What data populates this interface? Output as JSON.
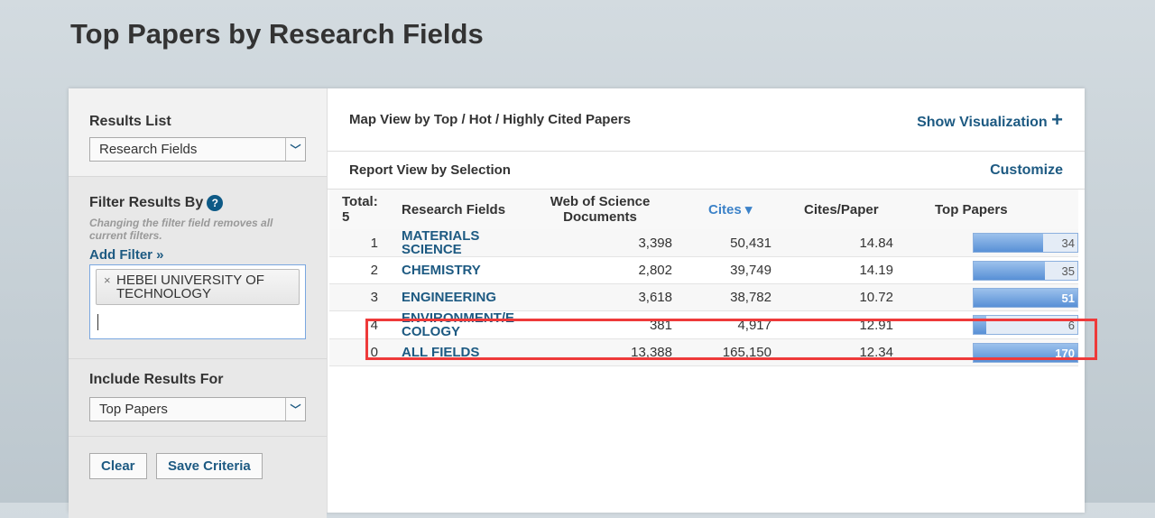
{
  "title": "Top Papers by Research Fields",
  "sidebar": {
    "results_list_label": "Results List",
    "results_list_value": "Research Fields",
    "filter_label": "Filter Results By",
    "help": "?",
    "filter_note": "Changing the filter field removes all current filters.",
    "add_filter": "Add Filter »",
    "filter_tag": "HEBEI UNIVERSITY OF TECHNOLOGY",
    "tag_remove": "×",
    "include_label": "Include Results For",
    "include_value": "Top Papers",
    "clear": "Clear",
    "save": "Save Criteria"
  },
  "main": {
    "map_view": "Map View by Top / Hot / Highly Cited Papers",
    "show_vis": "Show Visualization",
    "plus": "+",
    "report_view": "Report View by Selection",
    "customize": "Customize",
    "headers": {
      "total": "Total: 5",
      "field": "Research Fields",
      "docs": "Web of Science Documents",
      "cites": "Cites",
      "cites_arrow": "▾",
      "cpp": "Cites/Paper",
      "top": "Top Papers"
    },
    "rows": [
      {
        "rank": "1",
        "field": "MATERIALS SCIENCE",
        "docs": "3,398",
        "cites": "50,431",
        "cpp": "14.84",
        "top": 34
      },
      {
        "rank": "2",
        "field": "CHEMISTRY",
        "docs": "2,802",
        "cites": "39,749",
        "cpp": "14.19",
        "top": 35
      },
      {
        "rank": "3",
        "field": "ENGINEERING",
        "docs": "3,618",
        "cites": "38,782",
        "cpp": "10.72",
        "top": 51
      },
      {
        "rank": "4",
        "field": "ENVIRONMENT/E COLOGY",
        "docs": "381",
        "cites": "4,917",
        "cpp": "12.91",
        "top": 6,
        "highlighted": true
      },
      {
        "rank": "0",
        "field": "ALL FIELDS",
        "docs": "13,388",
        "cites": "165,150",
        "cpp": "12.34",
        "top": 170
      }
    ],
    "bar_color": "#5890d6",
    "highlight_color": "#ee3a3a"
  }
}
